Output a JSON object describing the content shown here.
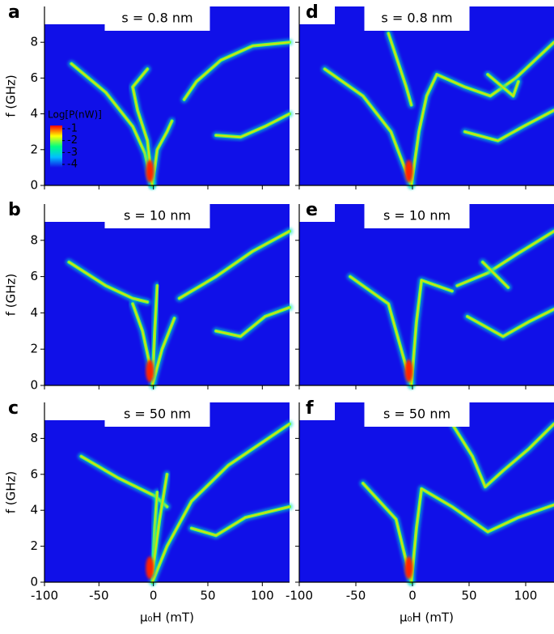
{
  "chart_data": [
    {
      "type": "heatmap",
      "panel_label": "a",
      "title": "s = 0.8 nm",
      "ylabel": "f (GHz)",
      "xlim": [
        -100,
        125
      ],
      "ylim": [
        0,
        10
      ],
      "xticks": [
        -100,
        -50,
        0,
        50,
        100
      ],
      "yticks": [
        0,
        2,
        4,
        6,
        8
      ],
      "show_xtick_labels": false,
      "show_ytick_labels": true,
      "colorbar": {
        "label": "Log[P(nW)]",
        "ticks": [
          -1,
          -2,
          -3,
          -4
        ],
        "colors": [
          "#ff0000",
          "#ffff00",
          "#00ff80",
          "#00c0ff",
          "#1010e8"
        ]
      }
    },
    {
      "type": "heatmap",
      "panel_label": "b",
      "title": "s = 10 nm",
      "ylabel": "f (GHz)",
      "xlim": [
        -100,
        125
      ],
      "ylim": [
        0,
        10
      ],
      "xticks": [
        -100,
        -50,
        0,
        50,
        100
      ],
      "yticks": [
        0,
        2,
        4,
        6,
        8
      ],
      "show_xtick_labels": false,
      "show_ytick_labels": true
    },
    {
      "type": "heatmap",
      "panel_label": "c",
      "title": "s = 50 nm",
      "ylabel": "f (GHz)",
      "xlabel": "μ₀H (mT)",
      "xlim": [
        -100,
        125
      ],
      "ylim": [
        0,
        10
      ],
      "xticks": [
        -100,
        -50,
        0,
        50,
        100
      ],
      "yticks": [
        0,
        2,
        4,
        6,
        8
      ],
      "show_xtick_labels": true,
      "show_ytick_labels": true
    },
    {
      "type": "heatmap",
      "panel_label": "d",
      "title": "s = 0.8 nm",
      "xlim": [
        -100,
        125
      ],
      "ylim": [
        0,
        10
      ],
      "xticks": [
        -100,
        -50,
        0,
        50,
        100
      ],
      "yticks": [
        0,
        2,
        4,
        6,
        8
      ],
      "show_xtick_labels": false,
      "show_ytick_labels": false
    },
    {
      "type": "heatmap",
      "panel_label": "e",
      "title": "s = 10 nm",
      "xlim": [
        -100,
        125
      ],
      "ylim": [
        0,
        10
      ],
      "xticks": [
        -100,
        -50,
        0,
        50,
        100
      ],
      "yticks": [
        0,
        2,
        4,
        6,
        8
      ],
      "show_xtick_labels": false,
      "show_ytick_labels": false
    },
    {
      "type": "heatmap",
      "panel_label": "f",
      "title": "s = 50 nm",
      "xlabel": "μ₀H (mT)",
      "xlim": [
        -100,
        125
      ],
      "ylim": [
        0,
        10
      ],
      "xticks": [
        -100,
        -50,
        0,
        50,
        100
      ],
      "yticks": [
        0,
        2,
        4,
        6,
        8
      ],
      "show_xtick_labels": true,
      "show_ytick_labels": false
    }
  ]
}
